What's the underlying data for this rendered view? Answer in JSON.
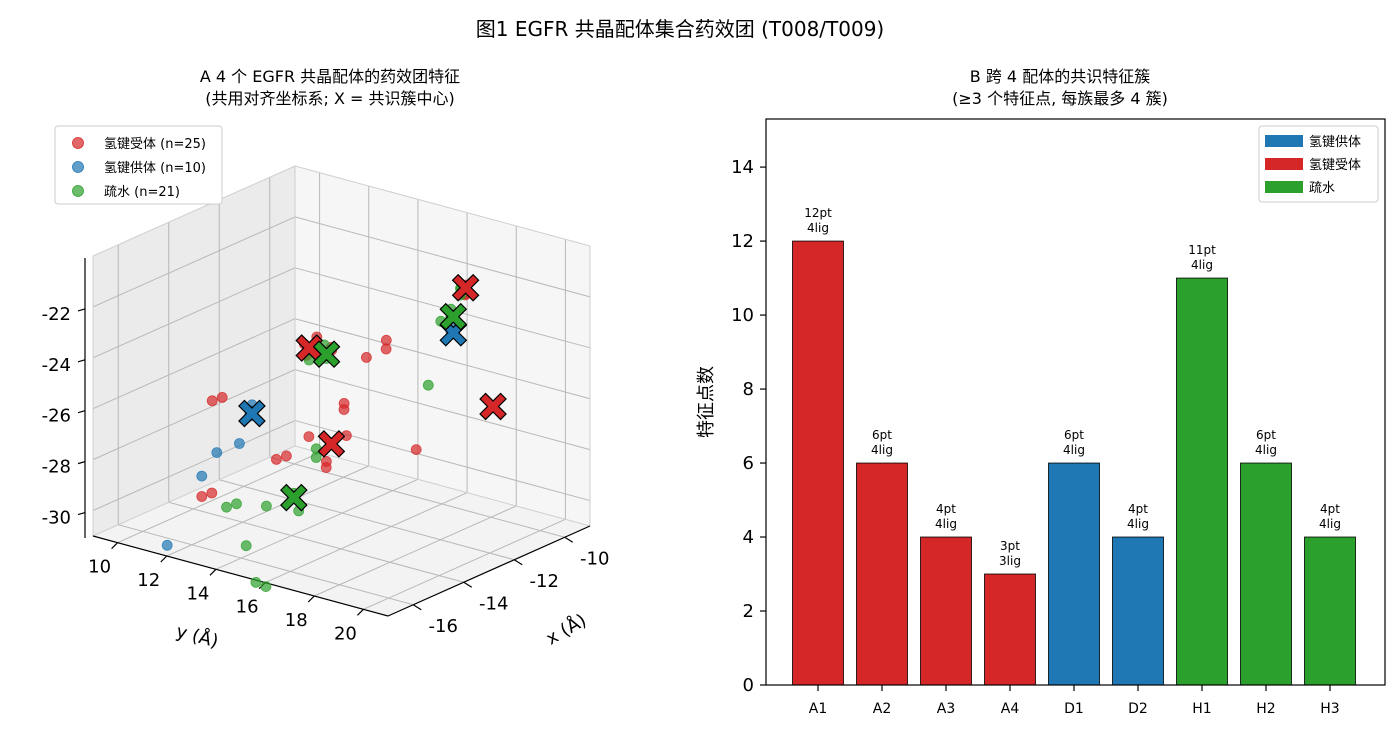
{
  "figure_title": "图1  EGFR 共晶配体集合药效团 (T008/T009)",
  "chart_data": [
    {
      "type": "scatter",
      "projection": "3d",
      "title": "A  4 个 EGFR 共晶配体的药效团特征",
      "subtitle": "(共用对齐坐标系; X = 共识簇中心)",
      "xlabel": "x (Å)",
      "ylabel": "y (Å)",
      "zlabel": "",
      "xticks": [
        "-16",
        "-14",
        "-12",
        "-10"
      ],
      "yticks": [
        "10",
        "12",
        "14",
        "16",
        "18",
        "20"
      ],
      "zticks": [
        "-22",
        "-24",
        "-26",
        "-28",
        "-30"
      ],
      "xlim": [
        -17,
        -9
      ],
      "ylim": [
        9,
        21
      ],
      "zlim": [
        -31,
        -20
      ],
      "legend_position": "upper-left",
      "colors": {
        "acceptor": "#d62728",
        "donor": "#1f77b4",
        "hydrophobic": "#2ca02c"
      },
      "legend": [
        "氢键受体 (n=25)",
        "氢键供体 (n=10)",
        "疏水 (n=21)"
      ],
      "series": [
        {
          "name": "氢键受体 (n=25)",
          "color": "#d62728",
          "points": [
            [
              -13.2,
              14.2,
              -23.5
            ],
            [
              -13.5,
              14.0,
              -23.7
            ],
            [
              -13.8,
              14.4,
              -23.9
            ],
            [
              -13.0,
              14.6,
              -24.0
            ],
            [
              -15.0,
              12.2,
              -25.6
            ],
            [
              -15.2,
              12.0,
              -25.7
            ],
            [
              -12.8,
              14.9,
              -26.1
            ],
            [
              -13.0,
              15.1,
              -26.2
            ],
            [
              -13.0,
              15.2,
              -27.2
            ],
            [
              -14.6,
              14.4,
              -27.5
            ],
            [
              -14.8,
              14.2,
              -27.6
            ],
            [
              -13.6,
              15.0,
              -28.0
            ],
            [
              -13.8,
              15.2,
              -28.1
            ],
            [
              -11.6,
              16.6,
              -28.0
            ],
            [
              -15.8,
              12.6,
              -28.9
            ],
            [
              -16.0,
              12.4,
              -29.0
            ],
            [
              -11.2,
              18.2,
              -21.3
            ],
            [
              -11.4,
              18.4,
              -21.5
            ],
            [
              -11.0,
              18.0,
              -21.7
            ],
            [
              -11.6,
              18.6,
              -21.4
            ],
            [
              -12.4,
              16.2,
              -23.8
            ],
            [
              -12.2,
              16.0,
              -23.6
            ],
            [
              -13.9,
              14.6,
              -27.0
            ],
            [
              -12.6,
              15.6,
              -24.2
            ],
            [
              -13.7,
              15.3,
              -23.4
            ]
          ]
        },
        {
          "name": "氢键供体 (n=10)",
          "color": "#1f77b4",
          "points": [
            [
              -14.4,
              12.8,
              -26.0
            ],
            [
              -14.6,
              12.9,
              -26.1
            ],
            [
              -14.8,
              13.1,
              -26.2
            ],
            [
              -15.6,
              12.6,
              -27.4
            ],
            [
              -16.0,
              12.4,
              -28.2
            ],
            [
              -16.4,
              11.4,
              -31.0
            ],
            [
              -11.2,
              17.6,
              -23.0
            ],
            [
              -11.4,
              17.8,
              -23.1
            ],
            [
              -11.0,
              17.4,
              -22.9
            ],
            [
              -14.9,
              12.8,
              -27.3
            ]
          ]
        },
        {
          "name": "疏水 (n=21)",
          "color": "#2ca02c",
          "points": [
            [
              -13.2,
              14.6,
              -24.0
            ],
            [
              -13.4,
              14.8,
              -24.1
            ],
            [
              -13.6,
              14.3,
              -24.2
            ],
            [
              -13.9,
              14.9,
              -27.4
            ],
            [
              -14.1,
              15.1,
              -27.6
            ],
            [
              -15.8,
              13.2,
              -29.3
            ],
            [
              -15.6,
              13.4,
              -29.2
            ],
            [
              -15.0,
              14.0,
              -29.4
            ],
            [
              -14.5,
              14.8,
              -29.6
            ],
            [
              -15.8,
              14.0,
              -30.6
            ],
            [
              -16.0,
              14.6,
              -31.8
            ],
            [
              -15.8,
              14.8,
              -32.0
            ],
            [
              -11.2,
              18.0,
              -21.5
            ],
            [
              -11.4,
              18.2,
              -21.6
            ],
            [
              -11.2,
              17.6,
              -22.4
            ],
            [
              -11.4,
              17.8,
              -22.6
            ],
            [
              -11.6,
              17.6,
              -22.7
            ],
            [
              -11.8,
              17.3,
              -25.2
            ],
            [
              -13.1,
              14.4,
              -23.8
            ],
            [
              -14.3,
              14.4,
              -29.1
            ],
            [
              -11.3,
              18.1,
              -21.4
            ]
          ]
        }
      ],
      "cluster_centers": [
        {
          "type": "acceptor",
          "color": "#d62728",
          "x": -13.5,
          "y": 14.2,
          "z": -23.8
        },
        {
          "type": "acceptor",
          "color": "#d62728",
          "x": -13.4,
          "y": 15.0,
          "z": -27.4
        },
        {
          "type": "acceptor",
          "color": "#d62728",
          "x": -11.2,
          "y": 18.2,
          "z": -21.4
        },
        {
          "type": "acceptor",
          "color": "#d62728",
          "x": -10.6,
          "y": 18.7,
          "z": -26.2
        },
        {
          "type": "donor",
          "color": "#1f77b4",
          "x": -14.6,
          "y": 13.0,
          "z": -26.2
        },
        {
          "type": "donor",
          "color": "#1f77b4",
          "x": -11.2,
          "y": 17.7,
          "z": -23.3
        },
        {
          "type": "hydrophobic",
          "color": "#2ca02c",
          "x": -13.3,
          "y": 14.7,
          "z": -24.0
        },
        {
          "type": "hydrophobic",
          "color": "#2ca02c",
          "x": -14.4,
          "y": 14.5,
          "z": -29.2
        },
        {
          "type": "hydrophobic",
          "color": "#2ca02c",
          "x": -11.3,
          "y": 17.8,
          "z": -22.6
        }
      ]
    },
    {
      "type": "bar",
      "title": "B  跨 4 配体的共识特征簇",
      "subtitle": "(≥3 个特征点, 每族最多 4 簇)",
      "xlabel": "",
      "ylabel": "特征点数",
      "ylim": [
        0,
        15.3
      ],
      "yticks": [
        0,
        2,
        4,
        6,
        8,
        10,
        12,
        14
      ],
      "grid": false,
      "legend_position": "upper-right",
      "legend": [
        {
          "label": "氢键供体",
          "color": "#1f77b4"
        },
        {
          "label": "氢键受体",
          "color": "#d62728"
        },
        {
          "label": "疏水",
          "color": "#2ca02c"
        }
      ],
      "categories": [
        "A1",
        "A2",
        "A3",
        "A4",
        "D1",
        "D2",
        "H1",
        "H2",
        "H3"
      ],
      "values": [
        12,
        6,
        4,
        3,
        6,
        4,
        11,
        6,
        4
      ],
      "colors": [
        "#d62728",
        "#d62728",
        "#d62728",
        "#d62728",
        "#1f77b4",
        "#1f77b4",
        "#2ca02c",
        "#2ca02c",
        "#2ca02c"
      ],
      "bar_labels": [
        [
          "12pt",
          "4lig"
        ],
        [
          "6pt",
          "4lig"
        ],
        [
          "4pt",
          "4lig"
        ],
        [
          "3pt",
          "3lig"
        ],
        [
          "6pt",
          "4lig"
        ],
        [
          "4pt",
          "4lig"
        ],
        [
          "11pt",
          "4lig"
        ],
        [
          "6pt",
          "4lig"
        ],
        [
          "4pt",
          "4lig"
        ]
      ]
    }
  ]
}
